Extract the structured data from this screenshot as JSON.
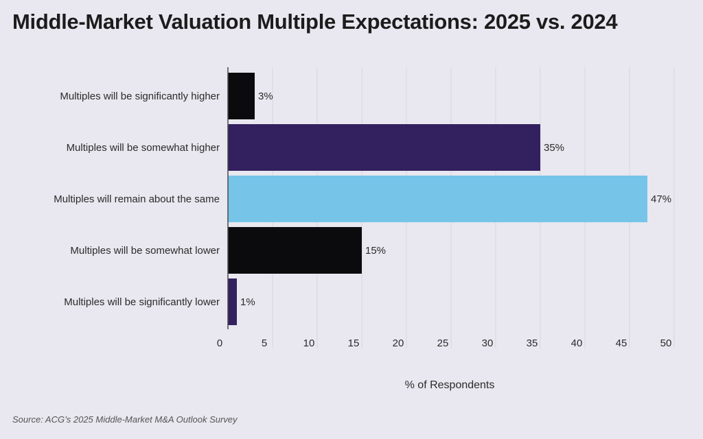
{
  "title": "Middle-Market Valuation Multiple Expectations: 2025 vs. 2024",
  "source": "Source: ACG’s 2025 Middle-Market M&A Outlook Survey",
  "colors": {
    "background": "#e9e7ef",
    "gridline": "#d9d6df",
    "axis": "#4a4a4a",
    "text": "#2b2b2b"
  },
  "chart_data": {
    "type": "bar",
    "orientation": "horizontal",
    "categories": [
      "Multiples will be significantly higher",
      "Multiples will be somewhat higher",
      "Multiples will remain about the same",
      "Multiples will be somewhat lower",
      "Multiples will be significantly lower"
    ],
    "values": [
      3,
      35,
      47,
      15,
      1
    ],
    "value_labels": [
      "3%",
      "35%",
      "47%",
      "15%",
      "1%"
    ],
    "bar_colors": [
      "#0b0b0e",
      "#33205e",
      "#76c5e8",
      "#0b0b0e",
      "#33205e"
    ],
    "xlabel": "% of Respondents",
    "ylabel": "",
    "xlim": [
      0,
      50
    ],
    "xticks": [
      0,
      5,
      10,
      15,
      20,
      25,
      30,
      35,
      40,
      45,
      50
    ],
    "grid": true
  }
}
